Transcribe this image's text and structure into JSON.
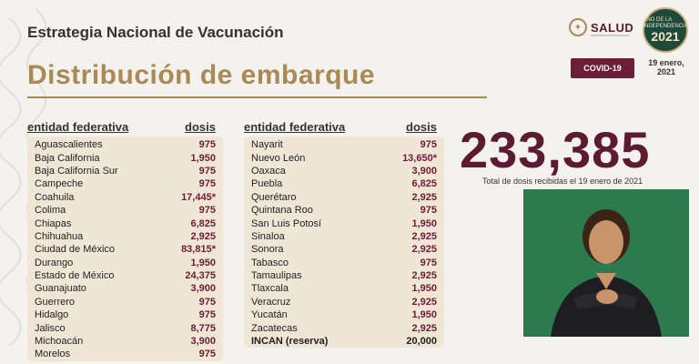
{
  "header": {
    "subtitle": "Estrategia Nacional de Vacunación",
    "title": "Distribución de embarque"
  },
  "logos": {
    "salud_label": "SALUD",
    "year_label": "2021",
    "year_caption": "AÑO DE LA INDEPENDENCIA"
  },
  "badge": {
    "label": "COVID-19"
  },
  "date": {
    "line1": "19 enero,",
    "line2": "2021"
  },
  "table_left": {
    "col_entity": "entidad federativa",
    "col_doses": "dosis",
    "rows": [
      {
        "name": "Aguascalientes",
        "value": "975"
      },
      {
        "name": "Baja California",
        "value": "1,950"
      },
      {
        "name": "Baja California Sur",
        "value": "975"
      },
      {
        "name": "Campeche",
        "value": "975"
      },
      {
        "name": "Coahuila",
        "value": "17,445*"
      },
      {
        "name": "Colima",
        "value": "975"
      },
      {
        "name": "Chiapas",
        "value": "6,825"
      },
      {
        "name": "Chihuahua",
        "value": "2,925"
      },
      {
        "name": "Ciudad de México",
        "value": "83,815*"
      },
      {
        "name": "Durango",
        "value": "1,950"
      },
      {
        "name": "Estado de México",
        "value": "24,375"
      },
      {
        "name": "Guanajuato",
        "value": "3,900"
      },
      {
        "name": "Guerrero",
        "value": "975"
      },
      {
        "name": "Hidalgo",
        "value": "975"
      },
      {
        "name": "Jalisco",
        "value": "8,775"
      },
      {
        "name": "Michoacán",
        "value": "3,900"
      },
      {
        "name": "Morelos",
        "value": "975"
      }
    ]
  },
  "table_right": {
    "col_entity": "entidad federativa",
    "col_doses": "dosis",
    "rows": [
      {
        "name": "Nayarit",
        "value": "975"
      },
      {
        "name": "Nuevo León",
        "value": "13,650*"
      },
      {
        "name": "Oaxaca",
        "value": "3,900"
      },
      {
        "name": "Puebla",
        "value": "6,825"
      },
      {
        "name": "Querétaro",
        "value": "2,925"
      },
      {
        "name": "Quintana Roo",
        "value": "975"
      },
      {
        "name": "San Luis Potosí",
        "value": "1,950"
      },
      {
        "name": "Sinaloa",
        "value": "2,925"
      },
      {
        "name": "Sonora",
        "value": "2,925"
      },
      {
        "name": "Tabasco",
        "value": "975"
      },
      {
        "name": "Tamaulipas",
        "value": "2,925"
      },
      {
        "name": "Tlaxcala",
        "value": "1,950"
      },
      {
        "name": "Veracruz",
        "value": "2,925"
      },
      {
        "name": "Yucatán",
        "value": "1,950"
      },
      {
        "name": "Zacatecas",
        "value": "2,925"
      },
      {
        "name": "INCAN (reserva)",
        "value": "20,000",
        "bold": true
      }
    ]
  },
  "total": {
    "value": "233,385",
    "caption": "Total de dosis recibidas el 19 enero de 2021"
  },
  "colors": {
    "accent_gold": "#a98a55",
    "accent_maroon": "#6c1d37",
    "table_bg": "#efe6d6",
    "video_bg": "#2e7a4f"
  }
}
